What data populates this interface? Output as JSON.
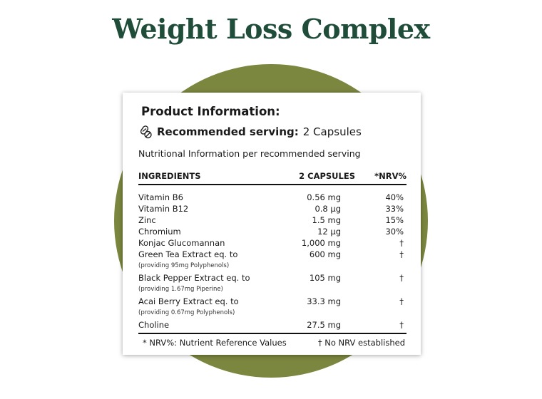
{
  "title": "Weight Loss Complex",
  "card": {
    "heading": "Product Information:",
    "serving": {
      "label": "Recommended serving:",
      "value": "2 Capsules"
    },
    "subtitle": "Nutritional Information per recommended serving",
    "table": {
      "headers": [
        "INGREDIENTS",
        "2 CAPSULES",
        "*NRV%"
      ],
      "rows": [
        {
          "name": "Vitamin B6",
          "amount": "0.56 mg",
          "nrv": "40%"
        },
        {
          "name": "Vitamin B12",
          "amount": "0.8 µg",
          "nrv": "33%"
        },
        {
          "name": "Zinc",
          "amount": "1.5 mg",
          "nrv": "15%"
        },
        {
          "name": "Chromium",
          "amount": "12 µg",
          "nrv": "30%"
        },
        {
          "name": "Konjac Glucomannan",
          "amount": "1,000 mg",
          "nrv": "†"
        },
        {
          "name": "Green Tea Extract eq. to",
          "note": "(providing 95mg Polyphenols)",
          "amount": "600 mg",
          "nrv": "†"
        },
        {
          "name": "Black Pepper Extract eq. to",
          "note": "(providing 1.67mg Piperine)",
          "amount": "105 mg",
          "nrv": "†"
        },
        {
          "name": "Acai Berry Extract eq. to",
          "note": "(providing 0.67mg Polyphenols)",
          "amount": "33.3 mg",
          "nrv": "†"
        },
        {
          "name": "Choline",
          "amount": "27.5 mg",
          "nrv": "†"
        }
      ]
    },
    "footnotes": [
      "* NRV%: Nutrient Reference Values",
      "† No NRV established"
    ]
  }
}
